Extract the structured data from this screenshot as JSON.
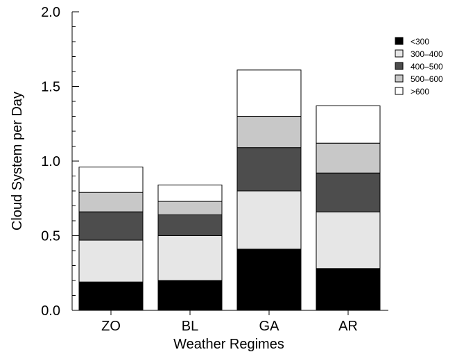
{
  "chart_data": {
    "type": "bar",
    "stacked": true,
    "categories": [
      "ZO",
      "BL",
      "GA",
      "AR"
    ],
    "series": [
      {
        "name": "<300",
        "color": "#000000",
        "values": [
          0.19,
          0.2,
          0.41,
          0.28
        ]
      },
      {
        "name": "300–400",
        "color": "#e6e6e6",
        "values": [
          0.28,
          0.3,
          0.39,
          0.38
        ]
      },
      {
        "name": "400–500",
        "color": "#4d4d4d",
        "values": [
          0.19,
          0.14,
          0.29,
          0.26
        ]
      },
      {
        "name": "500–600",
        "color": "#c8c8c8",
        "values": [
          0.13,
          0.09,
          0.21,
          0.2
        ]
      },
      {
        "name": ">600",
        "color": "#ffffff",
        "values": [
          0.17,
          0.11,
          0.31,
          0.25
        ]
      }
    ],
    "xlabel": "Weather Regimes",
    "ylabel": "Cloud System per Day",
    "ylim": [
      0,
      2.0
    ],
    "yticks": [
      "0.0",
      "0.5",
      "1.0",
      "1.5",
      "2.0"
    ],
    "grid": false,
    "legend_position": "top-right"
  }
}
